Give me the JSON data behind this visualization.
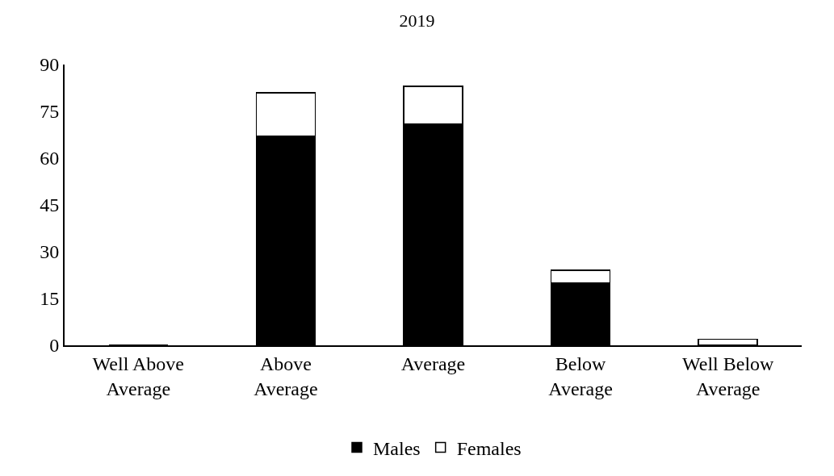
{
  "chart_data": {
    "type": "bar",
    "title": "2019",
    "stacked": true,
    "categories": [
      "Well Above Average",
      "Above Average",
      "Average",
      "Below Average",
      "Well Below Average"
    ],
    "series": [
      {
        "name": "Males",
        "color": "#000000",
        "values": [
          0,
          67,
          71,
          20,
          0
        ]
      },
      {
        "name": "Females",
        "color": "#ffffff",
        "values": [
          0,
          14,
          12,
          4,
          2
        ]
      }
    ],
    "ylim": [
      0,
      90
    ],
    "yticks": [
      0,
      15,
      30,
      45,
      60,
      75,
      90
    ],
    "legend": "bottom"
  }
}
